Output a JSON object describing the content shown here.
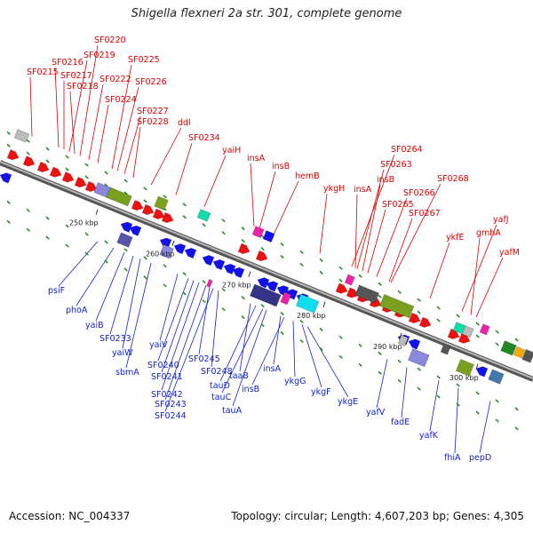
{
  "title": "Shigella flexneri 2a str. 301, complete genome",
  "footer": {
    "accession": "Accession: NC_004337",
    "summary": "Topology: circular; Length: 4,607,203 bp; Genes: 4,305"
  },
  "colors": {
    "top_strand": "#ee1111",
    "bottom_strand": "#1111ee",
    "top_label": "#dd0000",
    "bottom_label": "#1122cc",
    "backbone": "#8a8a8a",
    "dot": "#2a8a2a"
  },
  "scale_ticks": [
    "250 kbp",
    "260 kbp",
    "270 kbp",
    "280 kbp",
    "290 kbp",
    "300 kbp"
  ],
  "top_labels": [
    "SF0220",
    "SF0219",
    "SF0216",
    "SF0217",
    "SF0215",
    "SF0218",
    "SF0225",
    "SF0222",
    "SF0226",
    "SF0224",
    "SF0227",
    "SF0228",
    "ddl",
    "SF0234",
    "yaiH",
    "insA",
    "insB",
    "hemB",
    "ykgH",
    "SF0264",
    "SF0263",
    "insB",
    "insA",
    "SF0266",
    "SF0265",
    "SF0268",
    "SF0267",
    "yafJ",
    "ykfE",
    "gmhA",
    "yafM"
  ],
  "bottom_labels": [
    "psiF",
    "phoA",
    "yaiB",
    "SF0233",
    "yaiW",
    "sbmA",
    "yaiV",
    "SF0240",
    "SF0241",
    "SF0242",
    "SF0243",
    "SF0244",
    "SF0245",
    "SF0248",
    "taaB",
    "tauD",
    "tauC",
    "tauA",
    "insB",
    "insA",
    "ykgG",
    "ykgF",
    "ykgE",
    "yafV",
    "fadE",
    "yafK",
    "fhiA",
    "pepD"
  ]
}
